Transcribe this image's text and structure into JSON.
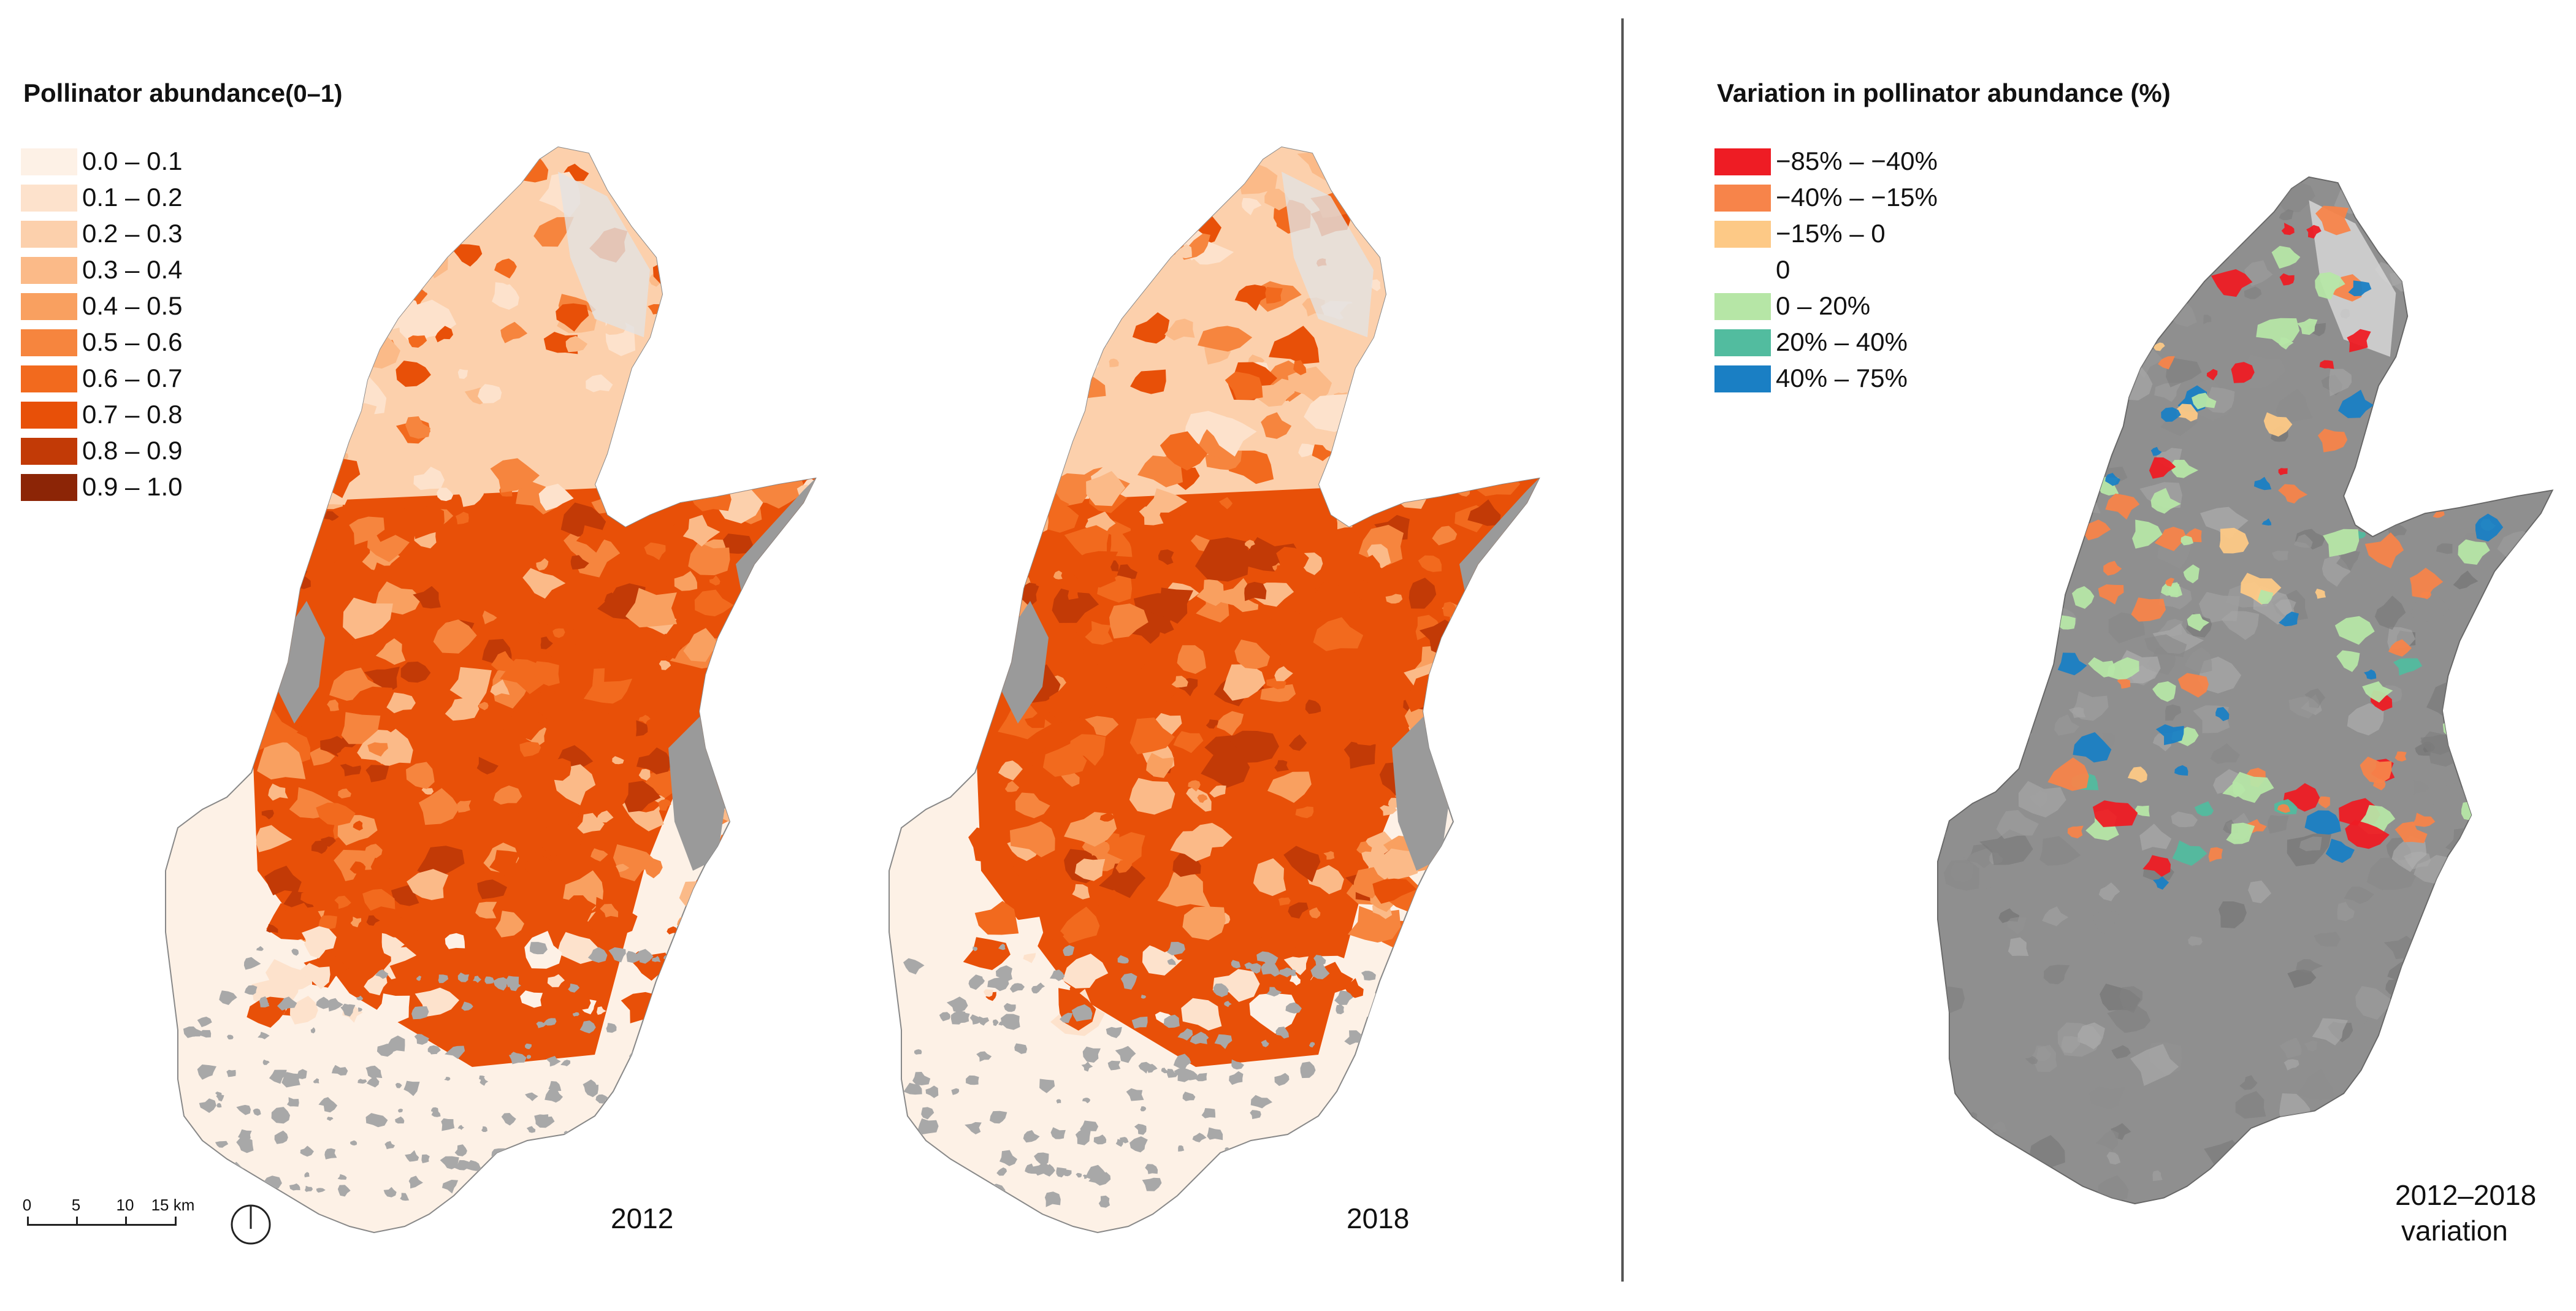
{
  "legend_abundance": {
    "title_main": "Pollinator abundance",
    "title_range": "(0–1)",
    "items": [
      {
        "label": "0.0 – 0.1",
        "color": "#fdf1e6"
      },
      {
        "label": "0.1 – 0.2",
        "color": "#fde2cc"
      },
      {
        "label": "0.2 – 0.3",
        "color": "#fcd0ac"
      },
      {
        "label": "0.3 – 0.4",
        "color": "#fbba88"
      },
      {
        "label": "0.4 – 0.5",
        "color": "#f9a060"
      },
      {
        "label": "0.5 – 0.6",
        "color": "#f6853e"
      },
      {
        "label": "0.6 – 0.7",
        "color": "#f26a1e"
      },
      {
        "label": "0.7 – 0.8",
        "color": "#e85008"
      },
      {
        "label": "0.8 – 0.9",
        "color": "#c23a06"
      },
      {
        "label": "0.9 – 1.0",
        "color": "#8c2506"
      }
    ]
  },
  "legend_variation": {
    "title": "Variation in pollinator abundance (%)",
    "items": [
      {
        "label": "−85% – −40%",
        "color": "#ee1c24"
      },
      {
        "label": "−40% – −15%",
        "color": "#f7844a"
      },
      {
        "label": "−15% – 0",
        "color": "#fdc986"
      },
      {
        "label": "0",
        "color": "#ffffff"
      },
      {
        "label": "0 – 20%",
        "color": "#b6e6a6"
      },
      {
        "label": "20% – 40%",
        "color": "#52bc9f"
      },
      {
        "label": "40% – 75%",
        "color": "#1a7fc4"
      }
    ]
  },
  "maps": {
    "map_2012_label": "2012",
    "map_2018_label": "2018",
    "variation_label_line1": "2012–2018",
    "variation_label_line2": "variation"
  },
  "scale_bar": {
    "ticks": [
      "0",
      "5",
      "10",
      "15 km"
    ]
  },
  "colors": {
    "urban_gray": "#a8a8a8",
    "lake_gray": "#9a9a9a",
    "mountain_light_gray": "#d9d9d9",
    "terrain_gray": "#8f8f8f"
  }
}
